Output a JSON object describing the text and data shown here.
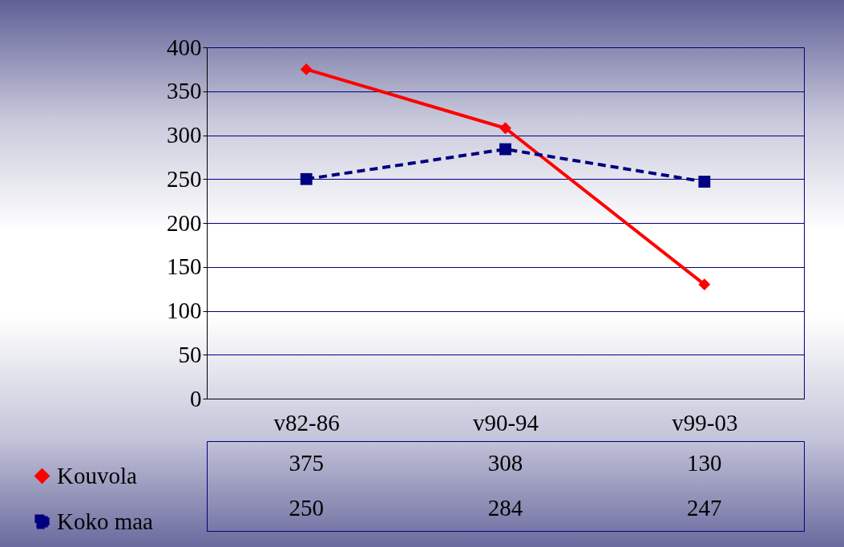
{
  "chart_data": {
    "type": "line",
    "categories": [
      "v82-86",
      "v90-94",
      "v99-03"
    ],
    "series": [
      {
        "name": "Kouvola",
        "color": "#ff0000",
        "values": [
          375,
          308,
          130
        ],
        "value_labels": [
          "375",
          "308",
          "130"
        ],
        "marker": "diamond",
        "line_style": "solid"
      },
      {
        "name": "Koko maa",
        "color": "#000080",
        "values": [
          250,
          284,
          247
        ],
        "value_labels": [
          "250",
          "284",
          "247"
        ],
        "marker": "square",
        "line_style": "dashed"
      }
    ],
    "ylim": [
      0,
      400
    ],
    "yticks": [
      0,
      50,
      100,
      150,
      200,
      250,
      300,
      350,
      400
    ],
    "grid": "y",
    "legend": "bottom left"
  }
}
